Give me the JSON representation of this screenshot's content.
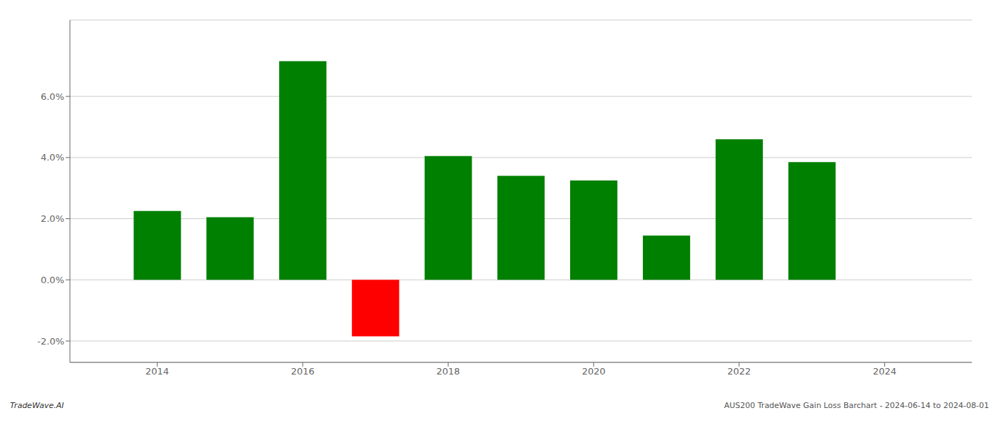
{
  "chart_data": {
    "type": "bar",
    "x": [
      2014,
      2015,
      2016,
      2017,
      2018,
      2019,
      2020,
      2021,
      2022,
      2023
    ],
    "values": [
      0.0225,
      0.0205,
      0.0715,
      -0.0185,
      0.0405,
      0.034,
      0.0325,
      0.0145,
      0.046,
      0.0385
    ],
    "colors": [
      "#008000",
      "#008000",
      "#008000",
      "#ff0000",
      "#008000",
      "#008000",
      "#008000",
      "#008000",
      "#008000",
      "#008000"
    ],
    "xlim": [
      2012.8,
      2025.2
    ],
    "xticks": [
      2014,
      2016,
      2018,
      2020,
      2022,
      2024
    ],
    "ylim": [
      -0.027,
      0.085
    ],
    "yticks": [
      {
        "value": -0.02,
        "label": "-2.0%"
      },
      {
        "value": 0.0,
        "label": "0.0%"
      },
      {
        "value": 0.02,
        "label": "2.0%"
      },
      {
        "value": 0.04,
        "label": "4.0%"
      },
      {
        "value": 0.06,
        "label": "6.0%"
      }
    ],
    "grid": true,
    "annotations": [
      "TradeWave.AI",
      "AUS200 TradeWave Gain Loss Barchart - 2024-06-14 to 2024-08-01"
    ]
  }
}
